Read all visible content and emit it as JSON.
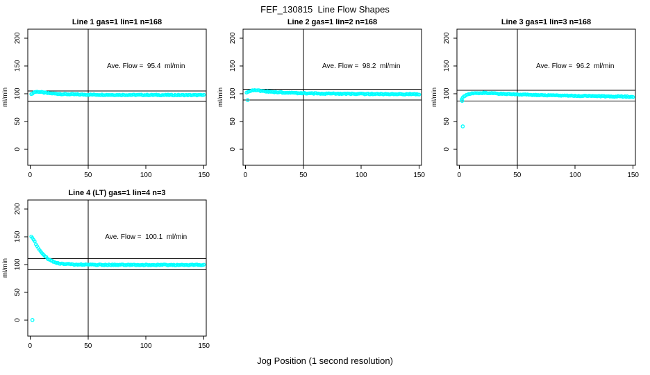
{
  "figure": {
    "main_title": "FEF_130815  Line Flow Shapes",
    "x_axis_label": "Jog Position (1 second resolution)",
    "y_axis_label": "ml/min",
    "background_color": "#ffffff",
    "point_color": "#00ffff",
    "axis_color": "#000000"
  },
  "chart_data": [
    {
      "type": "scatter",
      "title": "Line 1 gas=1 lin=1 n=168",
      "annotation": "Ave. Flow =  95.4  ml/min",
      "ave_flow_ml_min": 95.4,
      "ylabel": "ml/min",
      "xlim": [
        -2,
        152
      ],
      "ylim": [
        -29,
        216
      ],
      "xticks": [
        0,
        50,
        100,
        150
      ],
      "yticks": [
        0,
        50,
        100,
        150,
        200
      ],
      "vline_x": 50,
      "hlines": [
        104.9,
        85.9
      ],
      "band_points": [
        [
          1,
          98.5
        ],
        [
          2,
          100.5
        ],
        [
          4,
          103
        ],
        [
          7,
          103.5
        ],
        [
          10,
          102.5
        ],
        [
          15,
          101
        ],
        [
          22,
          99.8
        ],
        [
          30,
          99
        ],
        [
          45,
          98.3
        ],
        [
          70,
          97.8
        ],
        [
          100,
          97.6
        ],
        [
          130,
          97.4
        ],
        [
          150,
          97.3
        ]
      ],
      "outlier_points": []
    },
    {
      "type": "scatter",
      "title": "Line 2 gas=1 lin=2 n=168",
      "annotation": "Ave. Flow =  98.2  ml/min",
      "ave_flow_ml_min": 98.2,
      "ylabel": "ml/min",
      "xlim": [
        -2,
        152
      ],
      "ylim": [
        -29,
        216
      ],
      "xticks": [
        0,
        50,
        100,
        150
      ],
      "yticks": [
        0,
        50,
        100,
        150,
        200
      ],
      "vline_x": 50,
      "hlines": [
        108.0,
        88.4
      ],
      "band_points": [
        [
          1,
          101
        ],
        [
          3,
          104
        ],
        [
          6,
          106
        ],
        [
          10,
          105.8
        ],
        [
          15,
          104.5
        ],
        [
          25,
          102.8
        ],
        [
          40,
          101.3
        ],
        [
          60,
          100.3
        ],
        [
          90,
          99.6
        ],
        [
          120,
          99.2
        ],
        [
          150,
          99
        ]
      ],
      "outlier_points": [
        [
          2,
          88.4
        ]
      ]
    },
    {
      "type": "scatter",
      "title": "Line 3 gas=1 lin=3 n=168",
      "annotation": "Ave. Flow =  96.2  ml/min",
      "ave_flow_ml_min": 96.2,
      "ylabel": "ml/min",
      "xlim": [
        -2,
        152
      ],
      "ylim": [
        -29,
        216
      ],
      "xticks": [
        0,
        50,
        100,
        150
      ],
      "yticks": [
        0,
        50,
        100,
        150,
        200
      ],
      "vline_x": 50,
      "hlines": [
        105.8,
        86.6
      ],
      "band_points": [
        [
          2,
          90
        ],
        [
          4,
          95
        ],
        [
          7,
          98.5
        ],
        [
          12,
          101
        ],
        [
          20,
          101.3
        ],
        [
          30,
          100.5
        ],
        [
          45,
          99
        ],
        [
          65,
          97.5
        ],
        [
          90,
          96.3
        ],
        [
          120,
          95.3
        ],
        [
          150,
          94.5
        ]
      ],
      "outlier_points": [
        [
          2.5,
          87
        ],
        [
          3,
          41
        ]
      ]
    },
    {
      "type": "scatter",
      "title": "Line 4 (LT) gas=1 lin=4 n=3",
      "annotation": "Ave. Flow =  100.1  ml/min",
      "ave_flow_ml_min": 100.1,
      "ylabel": "ml/min",
      "xlim": [
        -2,
        152
      ],
      "ylim": [
        -29,
        216
      ],
      "xticks": [
        0,
        50,
        100,
        150
      ],
      "yticks": [
        0,
        50,
        100,
        150,
        200
      ],
      "vline_x": 50,
      "hlines": [
        110.1,
        90.1
      ],
      "band_points": [
        [
          1,
          150
        ],
        [
          2,
          148
        ],
        [
          3,
          145
        ],
        [
          4,
          141
        ],
        [
          5,
          137
        ],
        [
          7,
          130
        ],
        [
          9,
          124
        ],
        [
          11,
          119
        ],
        [
          13,
          114.5
        ],
        [
          15,
          111
        ],
        [
          18,
          107
        ],
        [
          21,
          104.5
        ],
        [
          25,
          102
        ],
        [
          30,
          100.8
        ],
        [
          38,
          100
        ],
        [
          50,
          99.6
        ],
        [
          70,
          99.4
        ],
        [
          100,
          99.3
        ],
        [
          125,
          99.2
        ],
        [
          150,
          99.3
        ]
      ],
      "outlier_points": [
        [
          2,
          0
        ]
      ]
    }
  ]
}
